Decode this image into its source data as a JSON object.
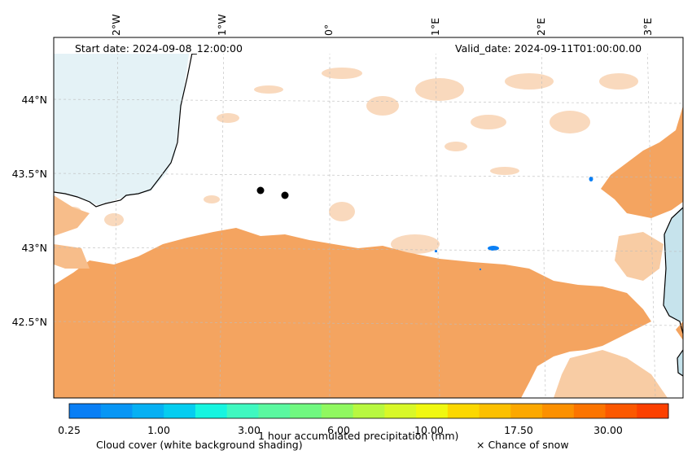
{
  "header": {
    "start_date": "Start date: 2024-09-08_12:00:00",
    "valid_date": "Valid_date: 2024-09-11T01:00:00.00"
  },
  "map": {
    "lon_labels": [
      "2°W",
      "1°W",
      "0°",
      "1°E",
      "2°E",
      "3°E"
    ],
    "lat_labels": [
      "44°N",
      "43.5°N",
      "43°N",
      "42.5°N"
    ],
    "colors": {
      "cloud": "#f4a460",
      "cloud_light": "#f8cfa8",
      "sea": "#cde6ee",
      "precip": "#0a7ff5",
      "coast": "#000000",
      "markers": "#000000"
    }
  },
  "colorbar": {
    "ticks": [
      "0.25",
      "1.00",
      "3.00",
      "6.00",
      "10.00",
      "17.50",
      "30.00"
    ],
    "colors": [
      "#0a7ff5",
      "#0896f5",
      "#06b0f3",
      "#05cdf0",
      "#16f5e0",
      "#3ff8c0",
      "#5af8a0",
      "#70f880",
      "#90f860",
      "#b8f840",
      "#d8f828",
      "#f0f810",
      "#fcd800",
      "#fcc000",
      "#fca800",
      "#fc9000",
      "#fc7400",
      "#fc5800",
      "#fc4000"
    ],
    "label": "1 hour accumulated precipitation (mm)"
  },
  "legend": {
    "cloud_cover": "Cloud cover (white background shading)",
    "snow": "× Chance of snow"
  }
}
